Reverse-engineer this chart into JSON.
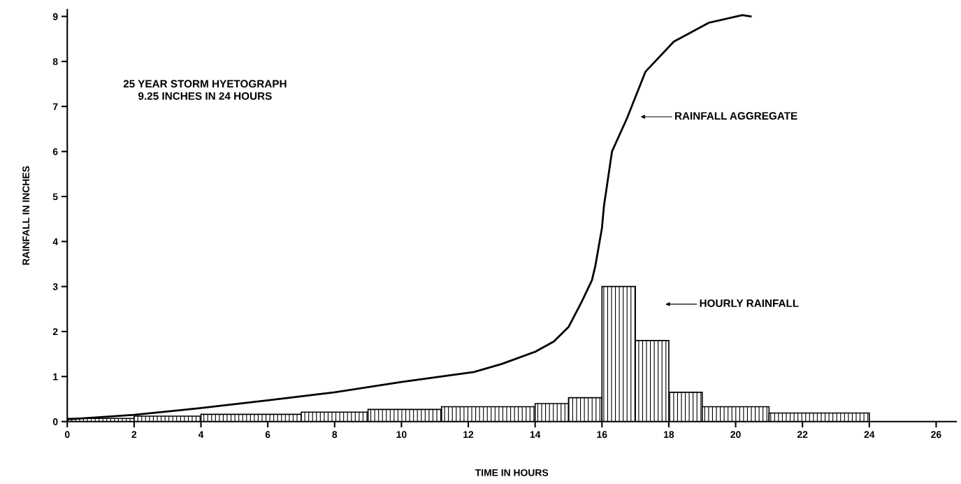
{
  "chart_data": {
    "type": "histogram",
    "xlabel": "TIME IN HOURS",
    "ylabel": "RAINFALL IN INCHES",
    "xlim": [
      0,
      26.6
    ],
    "ylim": [
      0,
      9.15
    ],
    "xticks": [
      0,
      2,
      4,
      6,
      8,
      10,
      12,
      14,
      16,
      18,
      20,
      22,
      24,
      26
    ],
    "yticks": [
      0,
      1,
      2,
      3,
      4,
      5,
      6,
      7,
      8,
      9
    ],
    "grid": false,
    "legend": false,
    "series": [
      {
        "color": "#000000",
        "bins": [
          0,
          2,
          4,
          7,
          9,
          11.2,
          14,
          15,
          16,
          17,
          18,
          19,
          21,
          24
        ],
        "values": [
          0.07,
          0.12,
          0.16,
          0.21,
          0.27,
          0.33,
          0.4,
          0.53,
          3.0,
          1.8,
          0.65,
          0.33,
          0.19
        ]
      },
      {
        "type": "line",
        "color": "#000000",
        "x": [
          0,
          2,
          4,
          6,
          8,
          10,
          12.17,
          13,
          14,
          14.56,
          15,
          15.4,
          15.7,
          15.8,
          16,
          16.06,
          16.3,
          16.75,
          17.3,
          18.15,
          19.2,
          20.2,
          20.45
        ],
        "values": [
          0.05,
          0.15,
          0.3,
          0.47,
          0.65,
          0.88,
          1.1,
          1.28,
          1.55,
          1.78,
          2.1,
          2.67,
          3.14,
          3.45,
          4.3,
          4.79,
          6.0,
          6.74,
          7.77,
          8.44,
          8.86,
          9.03,
          9.0
        ]
      }
    ],
    "annotations": [
      "25 YEAR STORM HYETOGRAPH\n9.25 INCHES IN 24 HOURS",
      "RAINFALL AGGREGATE",
      "HOURLY RAINFALL"
    ]
  }
}
